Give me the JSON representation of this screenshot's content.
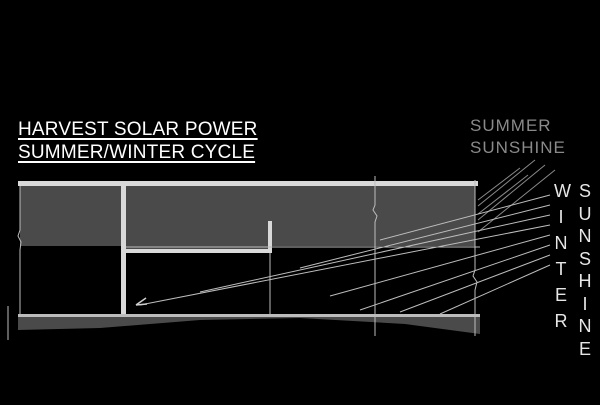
{
  "title": {
    "line1": "HARVEST SOLAR POWER",
    "line2": "SUMMER/WINTER CYCLE"
  },
  "summer_label": {
    "line1": "SUMMER",
    "line2": "SUNSHINE"
  },
  "winter_label": {
    "word1": "WINTER",
    "word2": "SUNSHINE"
  },
  "colors": {
    "background": "#000000",
    "wall_fill": "#4a4a4a",
    "structure": "#d9d9d9",
    "summer_rays": "#8a8a8a",
    "winter_rays": "#bdbdbd"
  }
}
